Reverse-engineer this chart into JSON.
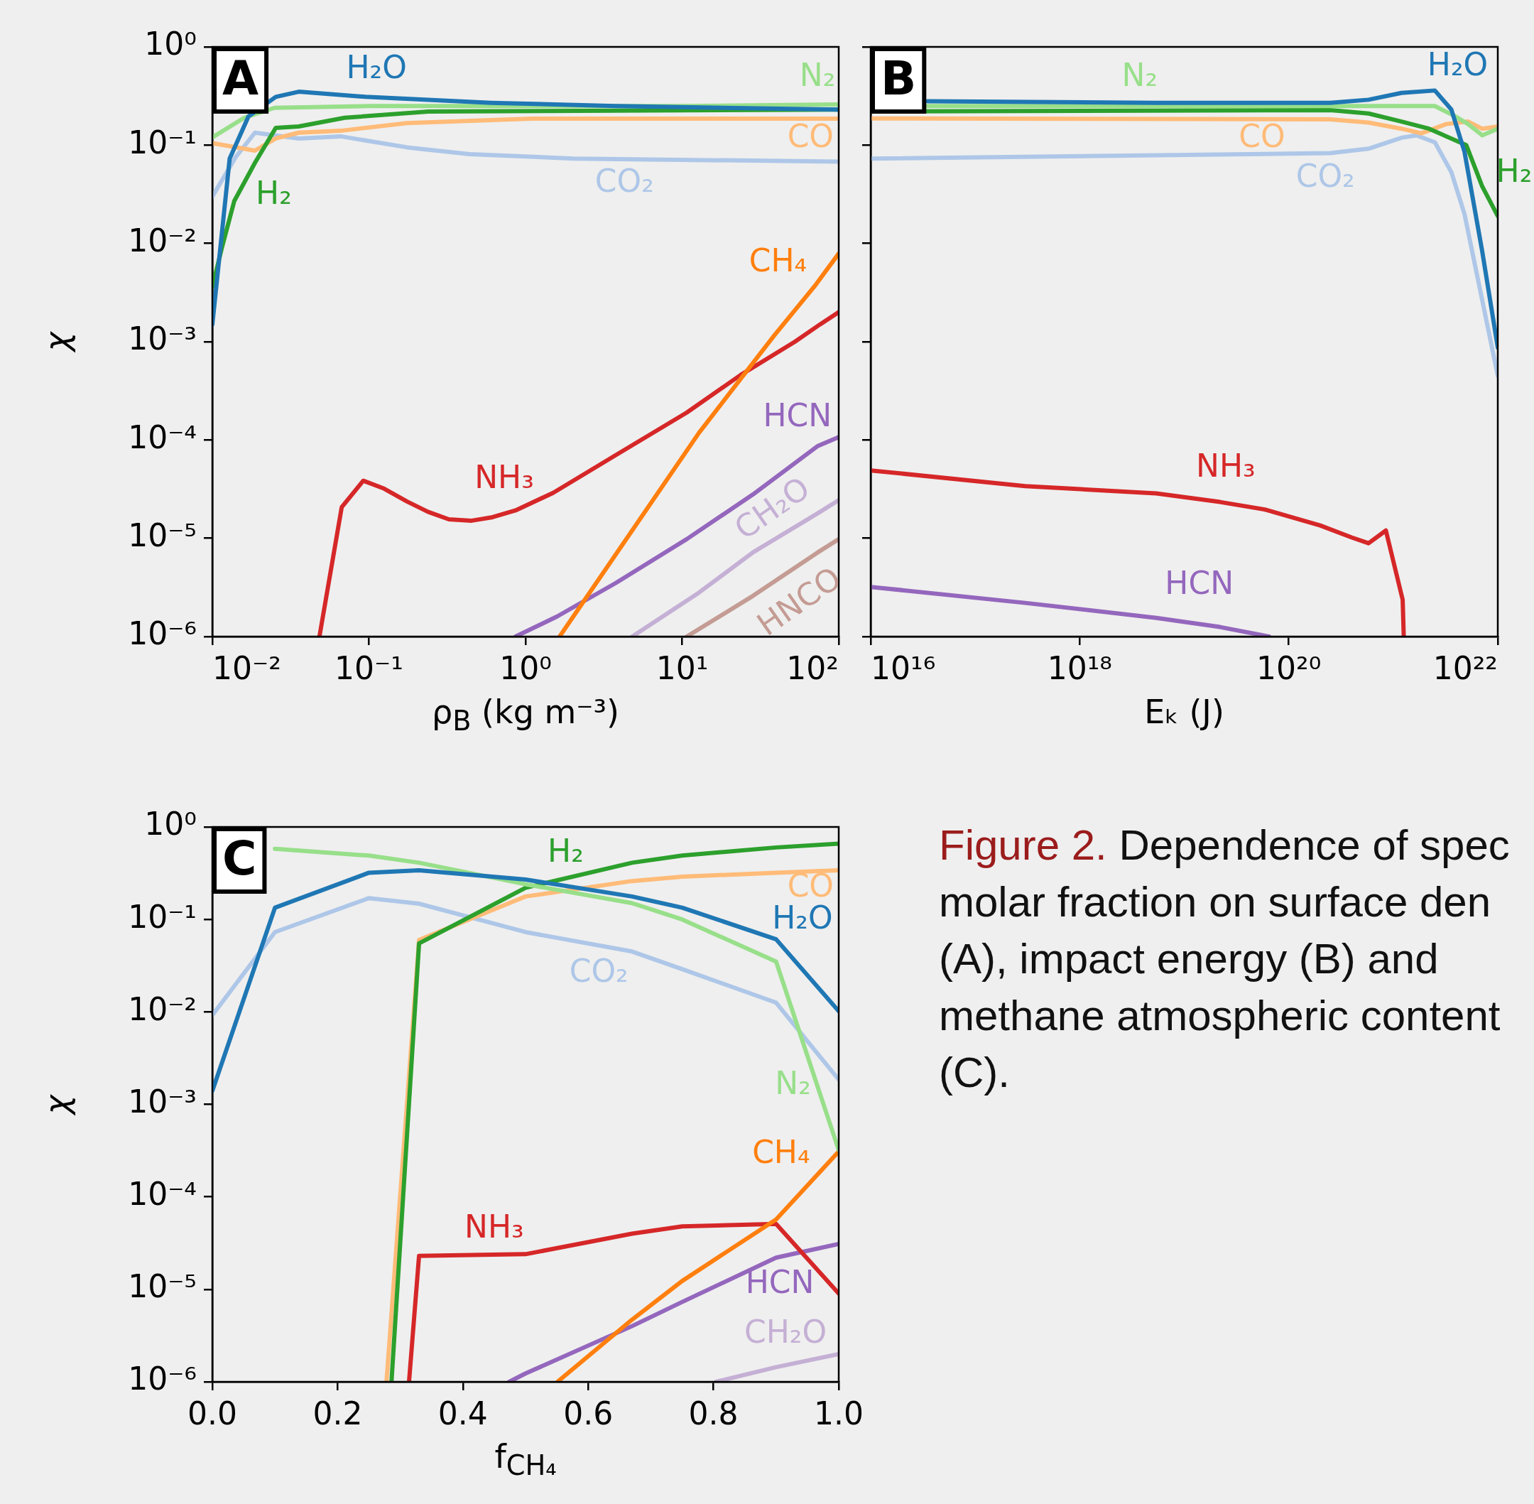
{
  "chart_data": [
    {
      "type": "line",
      "title": "A",
      "xlabel": "ρ$_{B}$ (kg m⁻³)",
      "ylabel": "χ",
      "log": "xy",
      "xlim": [
        0.01,
        100
      ],
      "ylim": [
        1e-06,
        1
      ],
      "xticks": [
        {
          "value": 0.01,
          "label": "10⁻²"
        },
        {
          "value": 0.1,
          "label": "10⁻¹"
        },
        {
          "value": 1,
          "label": "10⁰"
        },
        {
          "value": 10,
          "label": "10¹"
        },
        {
          "value": 100,
          "label": "10²"
        }
      ],
      "yticks": [
        {
          "value": 1e-06,
          "label": "10⁻⁶"
        },
        {
          "value": 1e-05,
          "label": "10⁻⁵"
        },
        {
          "value": 0.0001,
          "label": "10⁻⁴"
        },
        {
          "value": 0.001,
          "label": "10⁻³"
        },
        {
          "value": 0.01,
          "label": "10⁻²"
        },
        {
          "value": 0.1,
          "label": "10⁻¹"
        },
        {
          "value": 1,
          "label": "10⁰"
        }
      ],
      "series": [
        {
          "name": "H₂O",
          "color": "#1f77b4",
          "x": [
            0.01,
            0.0129,
            0.017,
            0.0254,
            0.0356,
            0.095,
            0.6,
            3.76,
            100
          ],
          "values": [
            0.0015,
            0.073,
            0.196,
            0.31,
            0.35,
            0.31,
            0.27,
            0.25,
            0.23
          ]
        },
        {
          "name": "N₂",
          "color": "#98df8a",
          "x": [
            0.01,
            0.016,
            0.025,
            0.1,
            1,
            10,
            100
          ],
          "values": [
            0.12,
            0.19,
            0.24,
            0.25,
            0.25,
            0.25,
            0.26
          ]
        },
        {
          "name": "H₂",
          "color": "#2ca02c",
          "x": [
            0.01,
            0.0115,
            0.0138,
            0.0187,
            0.0254,
            0.0356,
            0.07,
            0.24,
            100
          ],
          "values": [
            0.0036,
            0.009,
            0.027,
            0.066,
            0.15,
            0.155,
            0.19,
            0.22,
            0.23
          ]
        },
        {
          "name": "CO",
          "color": "#ffbb78",
          "x": [
            0.01,
            0.0187,
            0.0254,
            0.0356,
            0.066,
            0.175,
            1.1,
            100
          ],
          "values": [
            0.105,
            0.088,
            0.117,
            0.134,
            0.14,
            0.168,
            0.186,
            0.186
          ]
        },
        {
          "name": "CO₂",
          "color": "#aec7e8",
          "x": [
            0.01,
            0.0142,
            0.0187,
            0.0356,
            0.066,
            0.175,
            0.44,
            2.04,
            100
          ],
          "values": [
            0.03,
            0.077,
            0.134,
            0.117,
            0.123,
            0.095,
            0.081,
            0.073,
            0.068
          ]
        },
        {
          "name": "CH₄",
          "color": "#ff7f0e",
          "x": [
            1.65,
            12.8,
            38.6,
            71.3,
            100
          ],
          "values": [
            1e-06,
            0.000118,
            0.00115,
            0.0038,
            0.0079
          ]
        },
        {
          "name": "NH₃",
          "color": "#d62728",
          "x": [
            0.0483,
            0.067,
            0.092,
            0.125,
            0.175,
            0.238,
            0.324,
            0.453,
            0.616,
            0.863,
            1.5,
            3.76,
            10.7,
            23.7,
            52.5,
            75.9,
            100
          ],
          "values": [
            1e-06,
            2.07e-05,
            3.85e-05,
            3.2e-05,
            2.37e-05,
            1.86e-05,
            1.56e-05,
            1.51e-05,
            1.64e-05,
            1.92e-05,
            2.9e-05,
            7e-05,
            0.00019,
            0.00046,
            0.001,
            0.0015,
            0.002
          ]
        },
        {
          "name": "HCN",
          "color": "#9467bd",
          "x": [
            0.863,
            1.59,
            3.76,
            10.7,
            28.4,
            73.6,
            100
          ],
          "values": [
            1e-06,
            1.6e-06,
            3.5e-06,
            9.8e-06,
            2.8e-05,
            8.7e-05,
            0.000107
          ]
        },
        {
          "name": "CH₂O",
          "color": "#c5b0d5",
          "x": [
            4.8,
            12.8,
            28.4,
            73.6,
            100
          ],
          "values": [
            1e-06,
            2.8e-06,
            7.2e-06,
            1.8e-05,
            2.44e-05
          ]
        },
        {
          "name": "HNCO",
          "color": "#c49c94",
          "x": [
            10.7,
            28.4,
            73.6,
            100
          ],
          "values": [
            1e-06,
            2.6e-06,
            7.2e-06,
            9.8e-06
          ]
        }
      ]
    },
    {
      "type": "line",
      "title": "B",
      "xlabel": "Eₖ (J)",
      "log": "xy",
      "tick_labels": "x",
      "xlim": [
        1e+16,
        1e+22
      ],
      "ylim": [
        1e-06,
        1
      ],
      "xticks": [
        {
          "value": 1e+16,
          "label": "10¹⁶"
        },
        {
          "value": 1e+18,
          "label": "10¹⁸"
        },
        {
          "value": 1e+20,
          "label": "10²⁰"
        },
        {
          "value": 1e+22,
          "label": "10²²"
        }
      ],
      "yticks": [
        {
          "value": 1e-06,
          "label": null
        },
        {
          "value": 1e-05,
          "label": null
        },
        {
          "value": 0.0001,
          "label": null
        },
        {
          "value": 0.001,
          "label": null
        },
        {
          "value": 0.01,
          "label": null
        },
        {
          "value": 0.1,
          "label": null
        },
        {
          "value": 1,
          "label": null
        }
      ],
      "series": [
        {
          "name": "H₂O",
          "color": "#1f77b4",
          "x": [
            3.5e+16,
            5.4e+18,
            2.5e+20,
            5.8e+20,
            1.2e+21,
            2.5e+21,
            3.6e+21,
            4.8e+21,
            7.1e+21,
            1e+22
          ],
          "values": [
            0.28,
            0.27,
            0.27,
            0.29,
            0.34,
            0.36,
            0.23,
            0.086,
            0.0083,
            0.00087
          ]
        },
        {
          "name": "N₂",
          "color": "#98df8a",
          "x": [
            1e+16,
            2.5e+21,
            3.8e+21,
            5.2e+21,
            7.1e+21,
            1e+22
          ],
          "values": [
            0.25,
            0.25,
            0.2,
            0.164,
            0.126,
            0.147
          ]
        },
        {
          "name": "H₂",
          "color": "#2ca02c",
          "x": [
            1e+16,
            2.5e+20,
            5.8e+20,
            1.2e+21,
            2.2e+21,
            5e+21,
            7.1e+21,
            1e+22
          ],
          "values": [
            0.22,
            0.227,
            0.21,
            0.174,
            0.147,
            0.1,
            0.038,
            0.019
          ]
        },
        {
          "name": "CO",
          "color": "#ffbb78",
          "x": [
            1e+16,
            2.5e+20,
            5.8e+20,
            1.2e+21,
            1.86e+21,
            3.2e+21,
            5.2e+21,
            7.1e+21,
            1e+22
          ],
          "values": [
            0.187,
            0.183,
            0.17,
            0.147,
            0.132,
            0.164,
            0.174,
            0.147,
            0.155
          ]
        },
        {
          "name": "CO₂",
          "color": "#aec7e8",
          "x": [
            1e+16,
            2.5e+20,
            5.8e+20,
            1.2e+21,
            1.66e+21,
            2.5e+21,
            3.6e+21,
            4.8e+21,
            1e+22
          ],
          "values": [
            0.073,
            0.083,
            0.092,
            0.119,
            0.126,
            0.107,
            0.053,
            0.02,
            0.00045
          ]
        },
        {
          "name": "NH₃",
          "color": "#d62728",
          "x": [
            1e+16,
            3e+17,
            5.4e+18,
            2.2e+19,
            5.9e+19,
            2e+20,
            4e+20,
            5.8e+20,
            8.5e+20,
            1.23e+21,
            1.26e+21
          ],
          "values": [
            4.9e-05,
            3.4e-05,
            2.86e-05,
            2.34e-05,
            1.96e-05,
            1.35e-05,
            1.02e-05,
            8.9e-06,
            1.2e-05,
            2.37e-06,
            1e-06
          ]
        },
        {
          "name": "HCN",
          "color": "#9467bd",
          "x": [
            1e+16,
            3e+17,
            5.4e+18,
            2.2e+19,
            6.5e+19
          ],
          "values": [
            3.2e-06,
            2.2e-06,
            1.55e-06,
            1.25e-06,
            1e-06
          ]
        }
      ]
    },
    {
      "type": "line",
      "title": "C",
      "xlabel": "f$_{CH₄}$",
      "ylabel": "χ",
      "log": "y",
      "xlim": [
        0,
        1
      ],
      "ylim": [
        1e-06,
        1
      ],
      "xticks": [
        {
          "value": 0,
          "label": "0.0"
        },
        0.2,
        0.4,
        0.6,
        0.8,
        {
          "value": 1,
          "label": "1.0"
        }
      ],
      "yticks": [
        {
          "value": 1e-06,
          "label": "10⁻⁶"
        },
        {
          "value": 1e-05,
          "label": "10⁻⁵"
        },
        {
          "value": 0.0001,
          "label": "10⁻⁴"
        },
        {
          "value": 0.001,
          "label": "10⁻³"
        },
        {
          "value": 0.01,
          "label": "10⁻²"
        },
        {
          "value": 0.1,
          "label": "10⁻¹"
        },
        {
          "value": 1,
          "label": "10⁰"
        }
      ],
      "annotations": [
        "Figure 2.",
        "Dependence of spec\nmolar fraction on surface den\n(A), impact energy (B) and\nmethane atmospheric content\n(C)."
      ],
      "series": [
        {
          "name": "H₂O",
          "color": "#1f77b4",
          "x": [
            0,
            0.1,
            0.25,
            0.33,
            0.5,
            0.67,
            0.75,
            0.9,
            1
          ],
          "values": [
            0.0014,
            0.134,
            0.32,
            0.34,
            0.27,
            0.177,
            0.134,
            0.061,
            0.0102
          ]
        },
        {
          "name": "N₂",
          "color": "#98df8a",
          "x": [
            0.1,
            0.25,
            0.33,
            0.5,
            0.67,
            0.75,
            0.9,
            1
          ],
          "values": [
            0.58,
            0.49,
            0.41,
            0.24,
            0.15,
            0.1,
            0.035,
            0.00032
          ]
        },
        {
          "name": "H₂",
          "color": "#2ca02c",
          "x": [
            0.286,
            0.33,
            0.5,
            0.67,
            0.75,
            0.9,
            1
          ],
          "values": [
            1e-06,
            0.055,
            0.22,
            0.41,
            0.49,
            0.6,
            0.66
          ]
        },
        {
          "name": "CO",
          "color": "#ffbb78",
          "x": [
            0.278,
            0.33,
            0.5,
            0.67,
            0.75,
            0.9,
            1
          ],
          "values": [
            1e-06,
            0.06,
            0.177,
            0.26,
            0.29,
            0.32,
            0.34
          ]
        },
        {
          "name": "CO₂",
          "color": "#aec7e8",
          "x": [
            0,
            0.1,
            0.25,
            0.33,
            0.5,
            0.67,
            0.75,
            0.9,
            1
          ],
          "values": [
            0.0092,
            0.073,
            0.17,
            0.148,
            0.073,
            0.045,
            0.029,
            0.0126,
            0.00185
          ]
        },
        {
          "name": "CH₄",
          "color": "#ff7f0e",
          "x": [
            0.551,
            0.67,
            0.75,
            0.9,
            1
          ],
          "values": [
            1e-06,
            4.7e-06,
            1.23e-05,
            5.7e-05,
            0.00031
          ]
        },
        {
          "name": "NH₃",
          "color": "#d62728",
          "x": [
            0.314,
            0.33,
            0.5,
            0.67,
            0.75,
            0.9,
            1
          ],
          "values": [
            1e-06,
            2.3e-05,
            2.4e-05,
            4e-05,
            4.8e-05,
            5.1e-05,
            9e-06
          ]
        },
        {
          "name": "HCN",
          "color": "#9467bd",
          "x": [
            0.474,
            0.5,
            0.67,
            0.75,
            0.9,
            1
          ],
          "values": [
            1e-06,
            1.23e-06,
            4e-06,
            7.3e-06,
            2.2e-05,
            3.1e-05
          ]
        },
        {
          "name": "CH₂O",
          "color": "#c5b0d5",
          "x": [
            0.804,
            0.9,
            1
          ],
          "values": [
            1e-06,
            1.44e-06,
            2e-06
          ]
        }
      ]
    }
  ]
}
